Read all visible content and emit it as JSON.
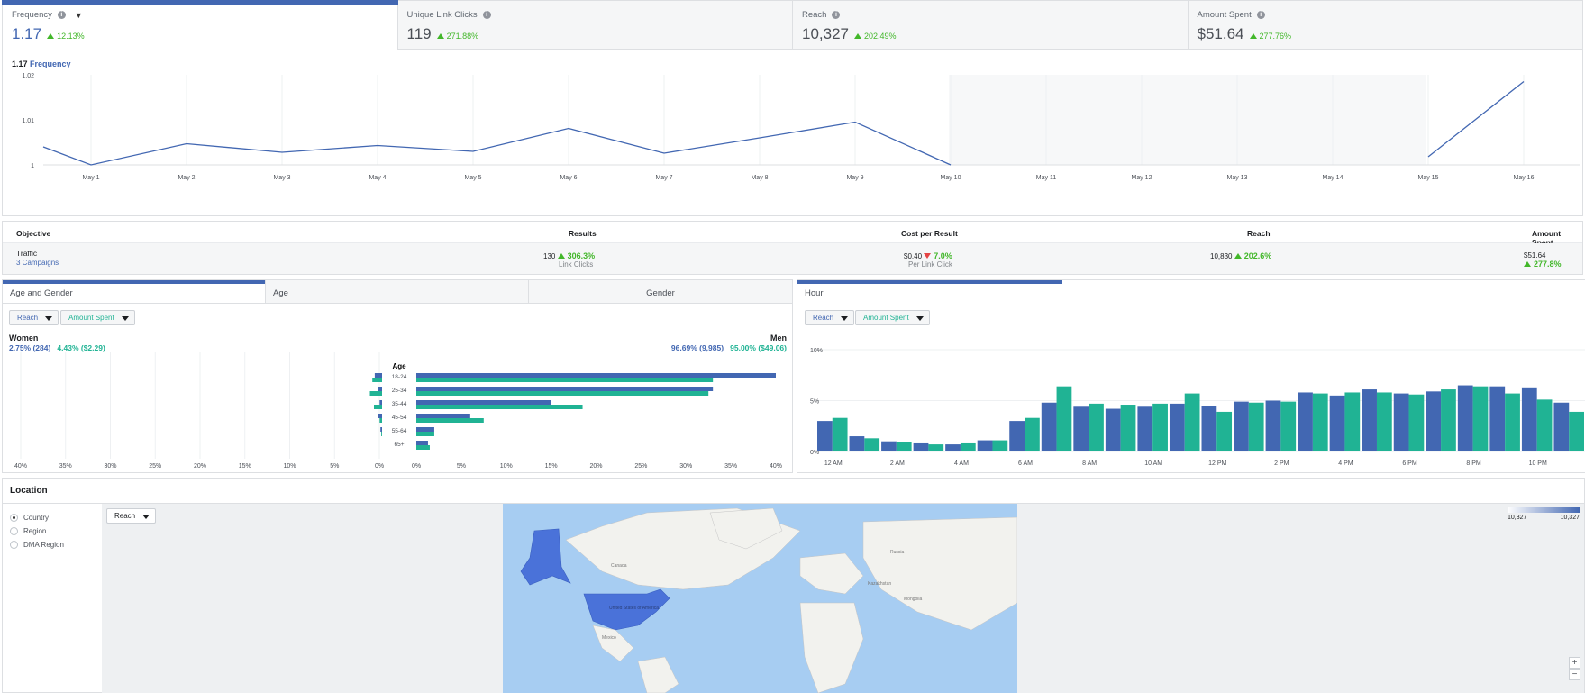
{
  "metrics": [
    {
      "label": "Frequency",
      "value": "1.17",
      "delta": "12.13%"
    },
    {
      "label": "Unique Link Clicks",
      "value": "119",
      "delta": "271.88%"
    },
    {
      "label": "Reach",
      "value": "10,327",
      "delta": "202.49%"
    },
    {
      "label": "Amount Spent",
      "value": "$51.64",
      "delta": "277.76%"
    }
  ],
  "line_chart": {
    "title_value": "1.17",
    "title_label": "Frequency"
  },
  "results_table": {
    "headers": {
      "objective": "Objective",
      "results": "Results",
      "cost": "Cost per Result",
      "reach": "Reach",
      "spent": "Amount Spent"
    },
    "row": {
      "objective": "Traffic",
      "campaigns": "3 Campaigns",
      "results": "130",
      "results_delta": "306.3%",
      "results_sub": "Link Clicks",
      "cost": "$0.40",
      "cost_delta": "7.0%",
      "cost_sub": "Per Link Click",
      "reach": "10,830",
      "reach_delta": "202.6%",
      "spent": "$51.64",
      "spent_delta": "277.8%"
    }
  },
  "age_gender": {
    "tabs": [
      "Age and Gender",
      "Age",
      "Gender"
    ],
    "dropdown_reach": "Reach",
    "dropdown_spent": "Amount Spent",
    "women_label": "Women",
    "women_reach": "2.75% (284)",
    "women_spent": "4.43% ($2.29)",
    "men_label": "Men",
    "men_reach": "96.69% (9,985)",
    "men_spent": "95.00% ($49.06)",
    "age_label": "Age"
  },
  "hour": {
    "tab": "Hour",
    "dropdown_reach": "Reach",
    "dropdown_spent": "Amount Spent"
  },
  "location": {
    "title": "Location",
    "options": [
      "Country",
      "Region",
      "DMA Region"
    ],
    "dropdown": "Reach",
    "legend_min": "10,327",
    "legend_max": "10,327",
    "map_labels": [
      "United States of America",
      "Canada",
      "Mexico",
      "Russia",
      "Mongolia",
      "Kazakhstan"
    ],
    "zoom_in": "+",
    "zoom_out": "−"
  },
  "colors": {
    "reach": "#4267b2",
    "spent": "#20b394",
    "accent": "#4267b2",
    "positive": "#42b72a",
    "negative": "#e54545"
  },
  "chart_data": [
    {
      "type": "line",
      "title": "1.17 Frequency",
      "categories": [
        "May 1",
        "May 2",
        "May 3",
        "May 4",
        "May 5",
        "May 6",
        "May 7",
        "May 8",
        "May 9",
        "May 10",
        "May 11",
        "May 12",
        "May 13",
        "May 14",
        "May 15",
        "May 16"
      ],
      "series": [
        {
          "name": "Frequency",
          "x": [
            "Apr 30",
            "May 1",
            "May 2",
            "May 3",
            "May 4",
            "May 5",
            "May 6",
            "May 7",
            "May 8",
            "May 9",
            "May 10"
          ],
          "values": [
            1.004,
            1.0,
            1.0047,
            1.0028,
            1.0043,
            1.003,
            1.0081,
            1.0026,
            1.006,
            1.0095,
            1.0
          ]
        },
        {
          "name": "Frequency (later)",
          "x": [
            "May 15",
            "May 16"
          ],
          "values": [
            1.0018,
            1.0185
          ]
        }
      ],
      "yticks": [
        "1",
        "1.01",
        "1.02"
      ],
      "ylim": [
        1,
        1.02
      ]
    },
    {
      "type": "bar",
      "title": "Age and Gender",
      "categories": [
        "18-24",
        "25-34",
        "35-44",
        "45-54",
        "55-64",
        "65+"
      ],
      "series": [
        {
          "name": "Men Reach",
          "values": [
            40,
            33,
            15,
            6,
            2,
            1.3
          ]
        },
        {
          "name": "Men Amount Spent",
          "values": [
            33,
            32.5,
            18.5,
            7.5,
            2,
            1.5
          ]
        },
        {
          "name": "Women Reach",
          "values": [
            0.9,
            0.5,
            0.3,
            0.5,
            0.2,
            0
          ]
        },
        {
          "name": "Women Amount Spent",
          "values": [
            1.2,
            1.5,
            1.0,
            0.3,
            0.1,
            0
          ]
        }
      ],
      "xticks_left": [
        "40%",
        "35%",
        "30%",
        "25%",
        "20%",
        "15%",
        "10%",
        "5%",
        "0%"
      ],
      "xticks_right": [
        "0%",
        "5%",
        "10%",
        "15%",
        "20%",
        "25%",
        "30%",
        "35%",
        "40%"
      ],
      "xlim": [
        0,
        40
      ]
    },
    {
      "type": "bar",
      "title": "Hour",
      "categories": [
        "12 AM",
        "1 AM",
        "2 AM",
        "3 AM",
        "4 AM",
        "5 AM",
        "6 AM",
        "7 AM",
        "8 AM",
        "9 AM",
        "10 AM",
        "11 AM",
        "12 PM",
        "1 PM",
        "2 PM",
        "3 PM",
        "4 PM",
        "5 PM",
        "6 PM",
        "7 PM",
        "8 PM",
        "9 PM",
        "10 PM",
        "11 PM"
      ],
      "series": [
        {
          "name": "Reach",
          "values": [
            3.0,
            1.5,
            1.0,
            0.8,
            0.7,
            1.1,
            3.0,
            4.8,
            4.4,
            4.2,
            4.4,
            4.7,
            4.5,
            4.9,
            5.0,
            5.8,
            5.5,
            6.1,
            5.7,
            5.9,
            6.5,
            6.4,
            6.3,
            4.8
          ]
        },
        {
          "name": "Amount Spent",
          "values": [
            3.3,
            1.3,
            0.9,
            0.7,
            0.8,
            1.1,
            3.3,
            6.4,
            4.7,
            4.6,
            4.7,
            5.7,
            3.9,
            4.8,
            4.9,
            5.7,
            5.8,
            5.8,
            5.6,
            6.1,
            6.4,
            5.7,
            5.1,
            3.9
          ]
        }
      ],
      "xticks": [
        "12 AM",
        "2 AM",
        "4 AM",
        "6 AM",
        "8 AM",
        "10 AM",
        "12 PM",
        "2 PM",
        "4 PM",
        "6 PM",
        "8 PM",
        "10 PM"
      ],
      "yticks": [
        "0%",
        "5%",
        "10%"
      ],
      "ylim": [
        0,
        10
      ]
    }
  ]
}
